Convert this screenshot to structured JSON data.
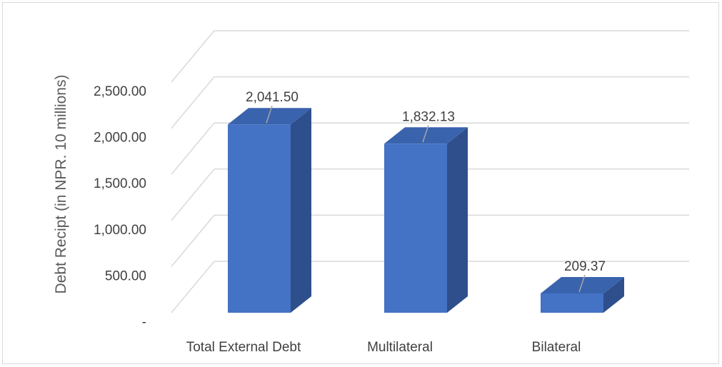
{
  "chart_data": {
    "type": "bar",
    "style": "3d-column",
    "categories": [
      "Total External Debt",
      "Multilateral",
      "Bilateral"
    ],
    "values": [
      2041.5,
      1832.13,
      209.37
    ],
    "value_labels": [
      "2,041.50",
      "1,832.13",
      "209.37"
    ],
    "title": "",
    "xlabel": "",
    "ylabel": "Debt Recipt (in NPR. 10 millions)",
    "ylim": [
      0,
      2500
    ],
    "yticks": [
      0,
      500,
      1000,
      1500,
      2000,
      2500
    ],
    "ytick_labels": [
      "-",
      "500.00",
      "1,000.00",
      "1,500.00",
      "2,000.00",
      "2,500.00"
    ],
    "grid": true,
    "legend": "none",
    "colors": {
      "front": "#4472c4",
      "side": "#2f4f8c",
      "top": "#3a63ad",
      "grid": "#d9d9d9"
    }
  }
}
